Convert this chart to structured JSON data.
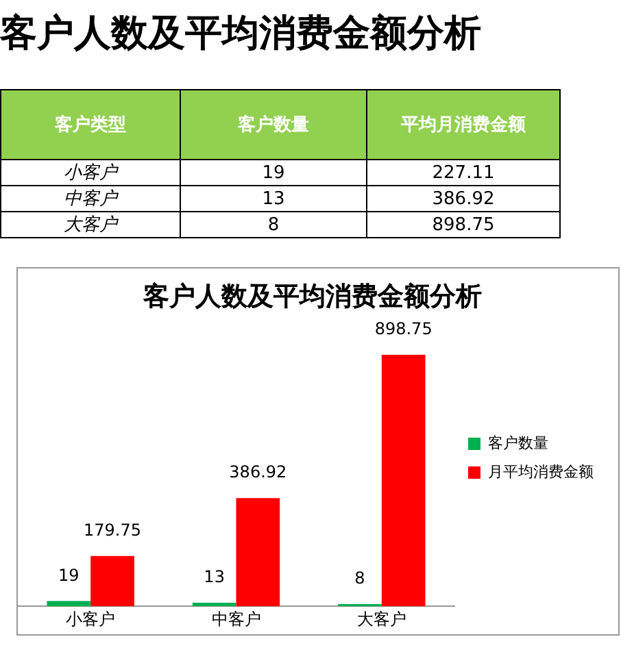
{
  "chart_data": [
    {
      "type": "other",
      "title": "客户人数及平均消费金额分析",
      "categories": [
        "客户类型",
        "客户数量",
        "平均月消费金额"
      ],
      "annotations": [
        "小客户",
        "19",
        "227.11",
        "中客户",
        "13",
        "386.92",
        "大客户",
        "8",
        "898.75"
      ]
    },
    {
      "type": "bar",
      "title": "客户人数及平均消费金额分析",
      "categories": [
        "小客户",
        "中客户",
        "大客户"
      ],
      "series": [
        {
          "name": "客户数量",
          "color": "#00b050",
          "values": [
            19,
            13,
            8
          ]
        },
        {
          "name": "月平均消费金额",
          "color": "#ff0000",
          "values": [
            179.75,
            386.92,
            898.75
          ]
        }
      ],
      "data_labels": true,
      "legend": "right",
      "grid": false
    }
  ]
}
